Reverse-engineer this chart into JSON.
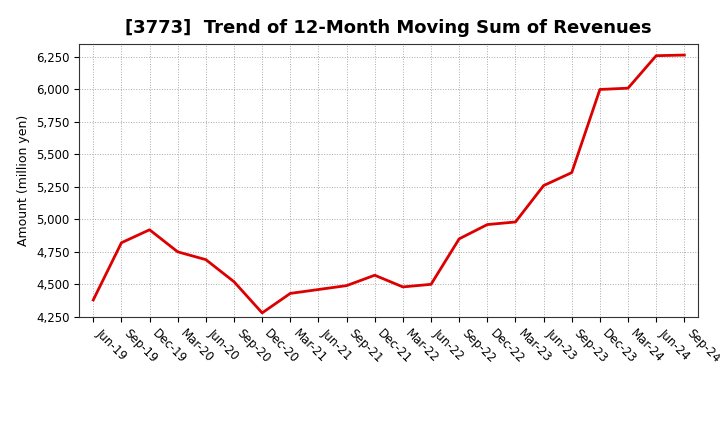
{
  "title": "[3773]  Trend of 12-Month Moving Sum of Revenues",
  "ylabel": "Amount (million yen)",
  "line_color": "#dd0000",
  "background_color": "#ffffff",
  "plot_bg_color": "#ffffff",
  "ylim": [
    4250,
    6350
  ],
  "yticks": [
    4250,
    4500,
    4750,
    5000,
    5250,
    5500,
    5750,
    6000,
    6250
  ],
  "x_labels": [
    "Jun-19",
    "Sep-19",
    "Dec-19",
    "Mar-20",
    "Jun-20",
    "Sep-20",
    "Dec-20",
    "Mar-21",
    "Jun-21",
    "Sep-21",
    "Dec-21",
    "Mar-22",
    "Jun-22",
    "Sep-22",
    "Dec-22",
    "Mar-23",
    "Jun-23",
    "Sep-23",
    "Dec-23",
    "Mar-24",
    "Jun-24",
    "Sep-24"
  ],
  "values": [
    4380,
    4820,
    4920,
    4750,
    4690,
    4520,
    4280,
    4430,
    4460,
    4490,
    4570,
    4480,
    4500,
    4850,
    4960,
    4980,
    5260,
    5360,
    6000,
    6010,
    6260,
    6265
  ],
  "title_fontsize": 13,
  "ylabel_fontsize": 9,
  "tick_fontsize": 8.5,
  "line_width": 2.0,
  "grid_color": "#aaaaaa",
  "grid_linestyle": ":",
  "grid_linewidth": 0.7,
  "spine_color": "#333333",
  "label_rotation": -45,
  "label_ha": "left"
}
